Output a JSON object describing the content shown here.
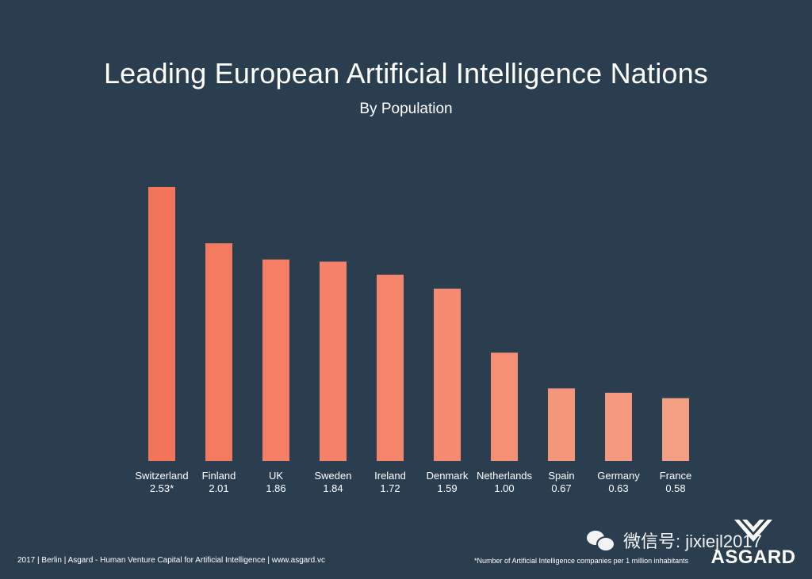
{
  "chart_data": {
    "type": "bar",
    "title": "Leading European Artificial Intelligence Nations",
    "subtitle": "By Population",
    "categories": [
      "Switzerland",
      "Finland",
      "UK",
      "Sweden",
      "Ireland",
      "Denmark",
      "Netherlands",
      "Spain",
      "Germany",
      "France"
    ],
    "values": [
      2.53,
      2.01,
      1.86,
      1.84,
      1.72,
      1.59,
      1.0,
      0.67,
      0.63,
      0.58
    ],
    "value_labels": [
      "2.53*",
      "2.01",
      "1.86",
      "1.84",
      "1.72",
      "1.59",
      "1.00",
      "0.67",
      "0.63",
      "0.58"
    ],
    "xlabel": "",
    "ylabel": "",
    "ylim": [
      0,
      2.53
    ],
    "grid": false,
    "legend": "none",
    "colors": [
      "#f4765a",
      "#f47b5f",
      "#f47f64",
      "#f58268",
      "#f5866c",
      "#f58a70",
      "#f59074",
      "#f49679",
      "#f59a7e",
      "#f49e83"
    ]
  },
  "footer": {
    "left": "2017 | Berlin | Asgard - Human Venture Capital for Artificial Intelligence | www.asgard.vc",
    "note": "*Number of Artificial Intelligence companies per 1 million inhabitants"
  },
  "watermark": {
    "text": "微信号: jixiejl2017",
    "icon": "wechat-icon"
  },
  "logo": {
    "text": "ASGARD"
  }
}
